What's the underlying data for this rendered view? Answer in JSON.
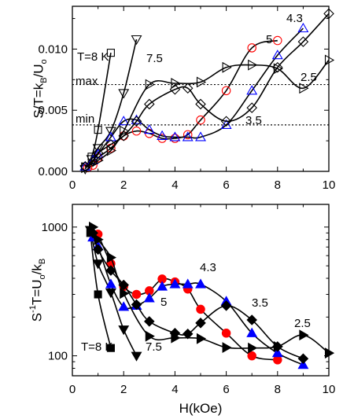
{
  "chart_data": [
    {
      "type": "line",
      "scale": "linear",
      "xlabel": "",
      "ylabel": "S/T=k_B/U_o",
      "xlim": [
        0,
        10
      ],
      "ylim": [
        0,
        0.0135
      ],
      "xticks": [
        "0",
        "2",
        "4",
        "6",
        "8",
        "10"
      ],
      "yticks": [
        "0.000",
        "0.005",
        "0.010"
      ],
      "ref_lines": [
        {
          "label": "max",
          "y": 0.0071
        },
        {
          "label": "min",
          "y": 0.0038
        }
      ],
      "series": [
        {
          "name": "T=8 K",
          "marker": "square",
          "color": "#000000",
          "fill": "none",
          "x": [
            0.5,
            0.75,
            1.0,
            1.5
          ],
          "y": [
            0.0004,
            0.0012,
            0.0034,
            0.0097
          ]
        },
        {
          "name": "7.5",
          "marker": "triangle-down",
          "color": "#000000",
          "fill": "none",
          "x": [
            0.5,
            0.75,
            1.0,
            1.5,
            2.0,
            2.5
          ],
          "y": [
            0.0002,
            0.001,
            0.0019,
            0.0033,
            0.0064,
            0.0108
          ]
        },
        {
          "name": "5",
          "marker": "circle",
          "color": "#ff0000",
          "fill": "none",
          "x": [
            0.6,
            0.8,
            1.0,
            1.5,
            2.0,
            2.5,
            3.0,
            3.5,
            4.0,
            4.5,
            5.0,
            6.0,
            7.0,
            8.0
          ],
          "y": [
            0.0003,
            0.0005,
            0.0011,
            0.0019,
            0.0029,
            0.0033,
            0.0031,
            0.0027,
            0.0027,
            0.003,
            0.0042,
            0.0066,
            0.0101,
            0.0107
          ]
        },
        {
          "name": "4.3",
          "marker": "triangle-up",
          "color": "#0000ff",
          "fill": "none",
          "x": [
            0.5,
            0.8,
            1.0,
            1.5,
            2.0,
            2.5,
            3.0,
            3.5,
            4.0,
            4.5,
            5.0,
            6.0,
            7.0,
            8.0,
            9.0
          ],
          "y": [
            0.0004,
            0.0009,
            0.0014,
            0.0028,
            0.0041,
            0.0042,
            0.0034,
            0.0029,
            0.0028,
            0.0028,
            0.0028,
            0.0038,
            0.0066,
            0.0095,
            0.0117
          ]
        },
        {
          "name": "3.5",
          "marker": "diamond",
          "color": "#000000",
          "fill": "none",
          "x": [
            0.5,
            0.8,
            1.0,
            1.5,
            2.0,
            2.5,
            3.0,
            4.0,
            4.5,
            5.0,
            6.0,
            7.0,
            8.0,
            9.0,
            10.0
          ],
          "y": [
            0.0004,
            0.0008,
            0.0015,
            0.0022,
            0.0029,
            0.0041,
            0.0055,
            0.0067,
            0.0068,
            0.0055,
            0.0041,
            0.0052,
            0.0085,
            0.0106,
            0.0129
          ]
        },
        {
          "name": "2.5",
          "marker": "triangle-right",
          "color": "#000000",
          "fill": "none",
          "x": [
            0.5,
            1.0,
            1.5,
            2.0,
            3.0,
            4.0,
            5.0,
            6.0,
            7.0,
            8.0,
            9.0,
            10.0
          ],
          "y": [
            0.0003,
            0.0009,
            0.0017,
            0.0033,
            0.0071,
            0.0072,
            0.0073,
            0.0085,
            0.0087,
            0.0084,
            0.0068,
            0.0091
          ]
        }
      ],
      "annotations": [
        "T=8 K",
        "7.5",
        "4.3",
        "5",
        "2.5",
        "3.5",
        "max",
        "min"
      ]
    },
    {
      "type": "line",
      "scale": "log",
      "xlabel": "H(kOe)",
      "ylabel": "S^-1T=U_o/k_B",
      "xlim": [
        0,
        10
      ],
      "ylim": [
        70,
        1500
      ],
      "xticks": [
        "0",
        "2",
        "4",
        "6",
        "8",
        "10"
      ],
      "yticks": [
        "100",
        "1000"
      ],
      "series": [
        {
          "name": "T=8 K",
          "marker": "square",
          "color": "#000000",
          "fill": "#000000",
          "x": [
            0.7,
            1.0,
            1.5
          ],
          "y": [
            900,
            300,
            115
          ]
        },
        {
          "name": "7.5",
          "marker": "triangle-down",
          "color": "#000000",
          "fill": "#000000",
          "x": [
            0.7,
            1.0,
            1.5,
            2.0,
            2.5
          ],
          "y": [
            950,
            520,
            310,
            160,
            100
          ]
        },
        {
          "name": "5",
          "marker": "circle",
          "color": "#ff0000",
          "fill": "#ff0000",
          "x": [
            1.0,
            1.5,
            2.0,
            2.5,
            3.0,
            3.5,
            4.0,
            4.5,
            5.0,
            6.0,
            7.0,
            8.0
          ],
          "y": [
            880,
            520,
            345,
            300,
            320,
            395,
            375,
            330,
            230,
            150,
            100,
            93
          ]
        },
        {
          "name": "4.3",
          "marker": "triangle-up",
          "color": "#0000ff",
          "fill": "#0000ff",
          "x": [
            0.8,
            1.0,
            1.5,
            2.0,
            2.5,
            3.0,
            3.5,
            4.0,
            4.5,
            5.0,
            6.0,
            7.0,
            8.0,
            9.0
          ],
          "y": [
            830,
            710,
            360,
            240,
            245,
            280,
            345,
            360,
            360,
            360,
            265,
            150,
            105,
            85
          ]
        },
        {
          "name": "3.5",
          "marker": "diamond",
          "color": "#000000",
          "fill": "#000000",
          "x": [
            0.8,
            1.0,
            1.5,
            2.0,
            2.5,
            3.0,
            4.0,
            4.5,
            5.0,
            6.0,
            7.0,
            8.0,
            9.0
          ],
          "y": [
            900,
            670,
            460,
            355,
            250,
            185,
            150,
            148,
            180,
            245,
            190,
            118,
            95
          ]
        },
        {
          "name": "2.5",
          "marker": "triangle-right",
          "color": "#000000",
          "fill": "#000000",
          "x": [
            0.8,
            1.0,
            1.5,
            2.0,
            3.0,
            4.0,
            5.0,
            6.0,
            7.0,
            8.0,
            9.0,
            10.0
          ],
          "y": [
            1000,
            800,
            580,
            305,
            142,
            138,
            136,
            116,
            115,
            118,
            145,
            105
          ]
        }
      ],
      "annotations": [
        "4.3",
        "5",
        "3.5",
        "2.5",
        "T=8 K",
        "7.5"
      ]
    }
  ]
}
